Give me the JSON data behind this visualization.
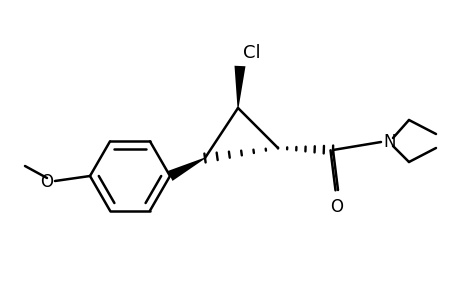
{
  "bg_color": "#ffffff",
  "line_color": "#000000",
  "line_width": 1.8,
  "font_size": 12,
  "figsize": [
    4.6,
    3.0
  ],
  "dpi": 100,
  "cyclopropane": {
    "c1": [
      278,
      148
    ],
    "c2": [
      238,
      108
    ],
    "c3": [
      208,
      155
    ]
  },
  "cl_label": "Cl",
  "o_label": "O",
  "n_label": "N",
  "methoxy_label": "O"
}
